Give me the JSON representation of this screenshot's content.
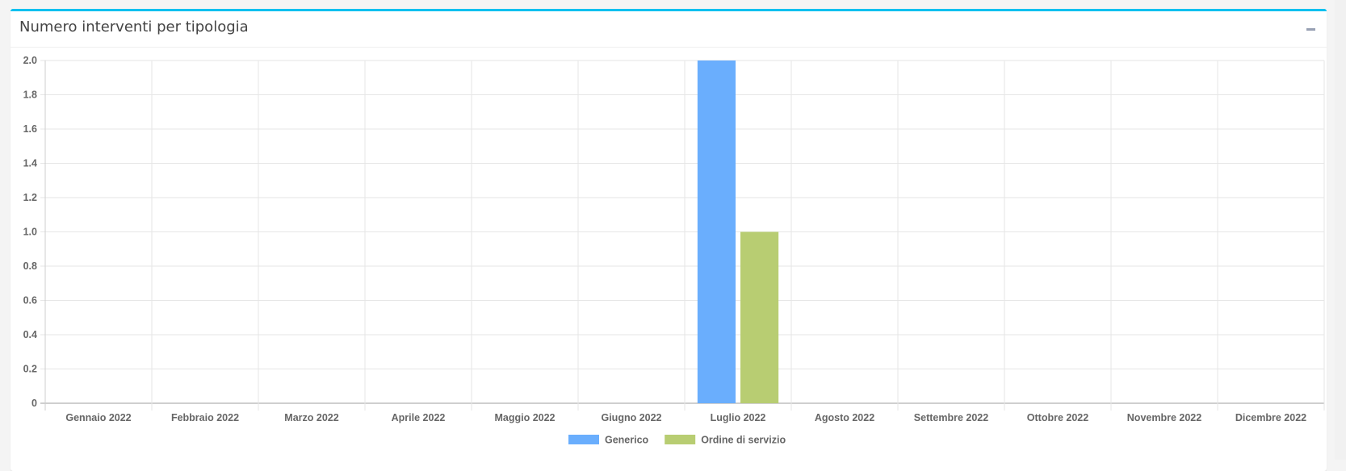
{
  "panel": {
    "title": "Numero interventi per tipologia",
    "collapse_icon": "minus-icon"
  },
  "chart_data": {
    "type": "bar",
    "title": "",
    "xlabel": "",
    "ylabel": "",
    "categories": [
      "Gennaio 2022",
      "Febbraio 2022",
      "Marzo 2022",
      "Aprile 2022",
      "Maggio 2022",
      "Giugno 2022",
      "Luglio 2022",
      "Agosto 2022",
      "Settembre 2022",
      "Ottobre 2022",
      "Novembre 2022",
      "Dicembre 2022"
    ],
    "series": [
      {
        "name": "Generico",
        "color": "#6aaefd",
        "values": [
          0,
          0,
          0,
          0,
          0,
          0,
          2,
          0,
          0,
          0,
          0,
          0
        ]
      },
      {
        "name": "Ordine di servizio",
        "color": "#b8cd72",
        "values": [
          0,
          0,
          0,
          0,
          0,
          0,
          1,
          0,
          0,
          0,
          0,
          0
        ]
      }
    ],
    "ylim": [
      0,
      2
    ],
    "yticks": [
      "0",
      "0.2",
      "0.4",
      "0.6",
      "0.8",
      "1.0",
      "1.2",
      "1.4",
      "1.6",
      "1.8",
      "2.0"
    ],
    "grid": true,
    "legend": "bottom"
  }
}
